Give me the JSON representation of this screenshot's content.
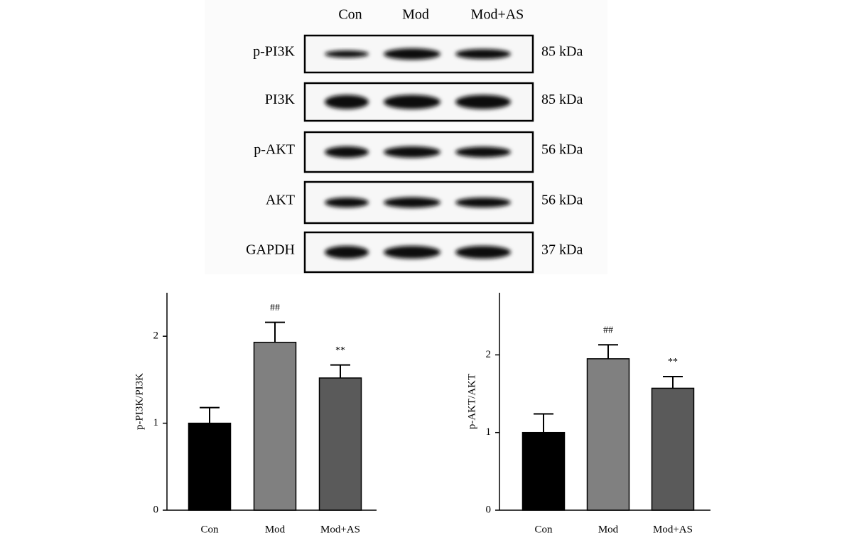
{
  "blot": {
    "lanes": [
      "Con",
      "Mod",
      "Mod+AS"
    ],
    "rows": [
      {
        "label": "p-PI3K",
        "size": "85 kDa"
      },
      {
        "label": "PI3K",
        "size": "85 kDa"
      },
      {
        "label": "p-AKT",
        "size": "56 kDa"
      },
      {
        "label": "AKT",
        "size": "56 kDa"
      },
      {
        "label": "GAPDH",
        "size": "37 kDa"
      }
    ]
  },
  "chart_data": [
    {
      "type": "bar",
      "ylabel": "p-PI3K/PI3K",
      "categories": [
        "Con",
        "Mod",
        "Mod+AS"
      ],
      "values": [
        1.0,
        1.93,
        1.52
      ],
      "errors": [
        0.18,
        0.23,
        0.15
      ],
      "annotations": [
        null,
        "##",
        "**"
      ],
      "colors": [
        "#000000",
        "#808080",
        "#5a5a5a"
      ],
      "ylim": [
        0,
        2.5
      ],
      "yticks": [
        0,
        1,
        2
      ]
    },
    {
      "type": "bar",
      "ylabel": "p-AKT/AKT",
      "categories": [
        "Con",
        "Mod",
        "Mod+AS"
      ],
      "values": [
        1.0,
        1.95,
        1.57
      ],
      "errors": [
        0.24,
        0.18,
        0.15
      ],
      "annotations": [
        null,
        "##",
        "**"
      ],
      "colors": [
        "#000000",
        "#808080",
        "#5a5a5a"
      ],
      "ylim": [
        0,
        2.8
      ],
      "yticks": [
        0,
        1,
        2
      ]
    }
  ]
}
